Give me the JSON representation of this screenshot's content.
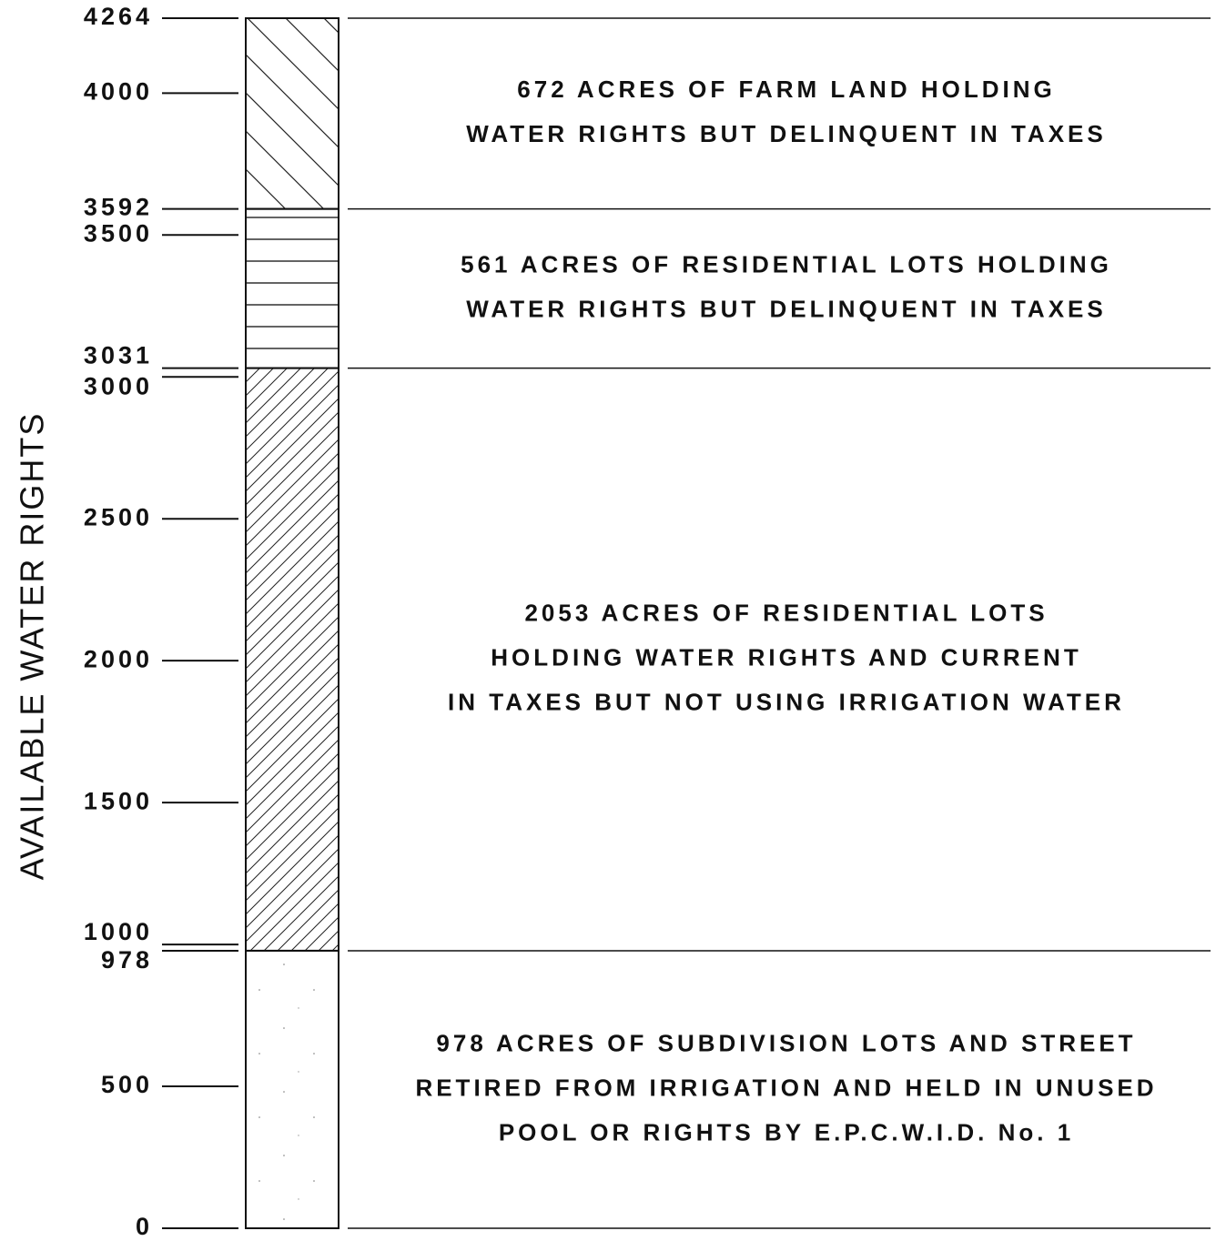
{
  "chart_data": {
    "type": "stacked_bar",
    "ylabel": "AVAILABLE WATER RIGHTS",
    "ylim": [
      0,
      4264
    ],
    "yticks": [
      0,
      500,
      978,
      1000,
      1500,
      2000,
      2500,
      3000,
      3031,
      3500,
      3592,
      4000,
      4264
    ],
    "series": [
      {
        "values": [
          978
        ],
        "pattern": "dots",
        "lines": [
          "978 ACRES OF SUBDIVISION LOTS AND STREET",
          "RETIRED FROM IRRIGATION AND HELD IN UNUSED",
          "POOL OR RIGHTS BY E.P.C.W.I.D. No. 1"
        ]
      },
      {
        "values": [
          2053
        ],
        "pattern": "diag-up",
        "lines": [
          "2053 ACRES OF RESIDENTIAL LOTS",
          "HOLDING WATER RIGHTS AND CURRENT",
          "IN TAXES BUT NOT USING IRRIGATION WATER"
        ]
      },
      {
        "values": [
          561
        ],
        "pattern": "horizontal",
        "lines": [
          "561 ACRES OF RESIDENTIAL LOTS HOLDING",
          "WATER RIGHTS BUT DELINQUENT IN TAXES"
        ]
      },
      {
        "values": [
          672
        ],
        "pattern": "diag-down",
        "lines": [
          "672 ACRES OF FARM LAND HOLDING",
          "WATER RIGHTS BUT DELINQUENT IN TAXES"
        ]
      }
    ]
  }
}
